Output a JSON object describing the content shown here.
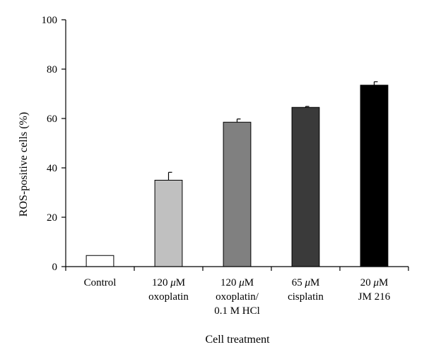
{
  "chart_data": {
    "type": "bar",
    "title": "",
    "xlabel": "Cell treatment",
    "ylabel": "ROS-positive cells (%)",
    "ylim": [
      0,
      100
    ],
    "yticks": [
      0,
      20,
      40,
      60,
      80,
      100
    ],
    "grid": false,
    "categories": [
      [
        "Control"
      ],
      [
        "120 μM",
        "oxoplatin"
      ],
      [
        "120 μM",
        "oxoplatin/",
        "0.1 M HCl"
      ],
      [
        "65 μM",
        "cisplatin"
      ],
      [
        "20 μM",
        "JM 216"
      ]
    ],
    "values": [
      4.5,
      35,
      58.5,
      64.5,
      73.5
    ],
    "errors": [
      0,
      3.2,
      1.3,
      0.4,
      1.4
    ],
    "bar_colors": [
      "#ffffff",
      "#c0c0c0",
      "#808080",
      "#3a3a3a",
      "#000000"
    ]
  }
}
